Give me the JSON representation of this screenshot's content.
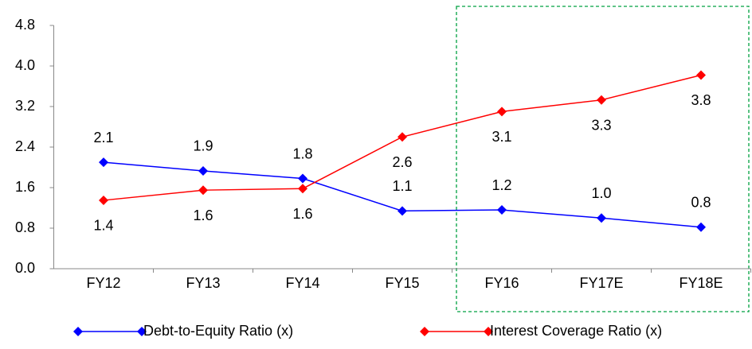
{
  "chart_data": {
    "type": "line",
    "categories": [
      "FY12",
      "FY13",
      "FY14",
      "FY15",
      "FY16",
      "FY17E",
      "FY18E"
    ],
    "series": [
      {
        "name": "Debt-to-Equity Ratio (x)",
        "color": "#0000ff",
        "values": [
          2.1,
          1.93,
          1.78,
          1.14,
          1.16,
          1.0,
          0.82
        ],
        "value_labels": [
          "2.1",
          "1.9",
          "1.8",
          "1.1",
          "1.2",
          "1.0",
          "0.8"
        ]
      },
      {
        "name": "Interest Coverage Ratio (x)",
        "color": "#ff0000",
        "values": [
          1.35,
          1.55,
          1.58,
          2.6,
          3.1,
          3.33,
          3.82
        ],
        "value_labels": [
          "1.4",
          "1.6",
          "1.6",
          "2.6",
          "3.1",
          "3.3",
          "3.8"
        ]
      }
    ],
    "ylim": [
      0,
      4.8
    ],
    "yticks": [
      {
        "value": 0,
        "label": "0.0"
      },
      0.8,
      1.6,
      2.4,
      3.2,
      {
        "value": 4,
        "label": "4.0"
      },
      4.8
    ]
  }
}
